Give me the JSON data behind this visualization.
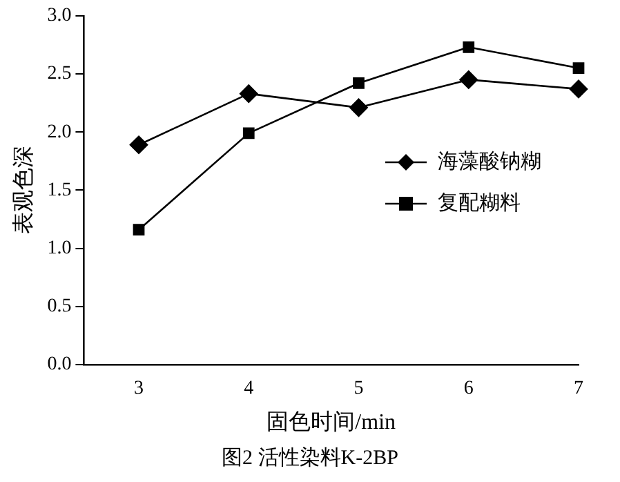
{
  "chart_data": {
    "type": "line",
    "xlabel": "固色时间/min",
    "ylabel": "表观色深",
    "x": [
      3,
      4,
      5,
      6,
      7
    ],
    "xlim": [
      2.5,
      7
    ],
    "xticks": [
      3,
      4,
      5,
      6,
      7
    ],
    "ylim": [
      0,
      3
    ],
    "yticks": [
      {
        "value": 0,
        "label": "0.0"
      },
      {
        "value": 0.5,
        "label": "0.5"
      },
      {
        "value": 1,
        "label": "1.0"
      },
      {
        "value": 1.5,
        "label": "1.5"
      },
      {
        "value": 2,
        "label": "2.0"
      },
      {
        "value": 2.5,
        "label": "2.5"
      },
      {
        "value": 3,
        "label": "3.0"
      }
    ],
    "series": [
      {
        "name": "海藻酸钠糊",
        "color": "#000000",
        "marker": "diamond",
        "values": [
          1.89,
          2.33,
          2.21,
          2.45,
          2.37
        ]
      },
      {
        "name": "复配糊料",
        "color": "#000000",
        "marker": "square",
        "values": [
          1.16,
          1.99,
          2.42,
          2.73,
          2.55
        ]
      }
    ],
    "legend": "right",
    "grid": false,
    "annotations": [
      "图2 活性染料K-2BP"
    ]
  }
}
